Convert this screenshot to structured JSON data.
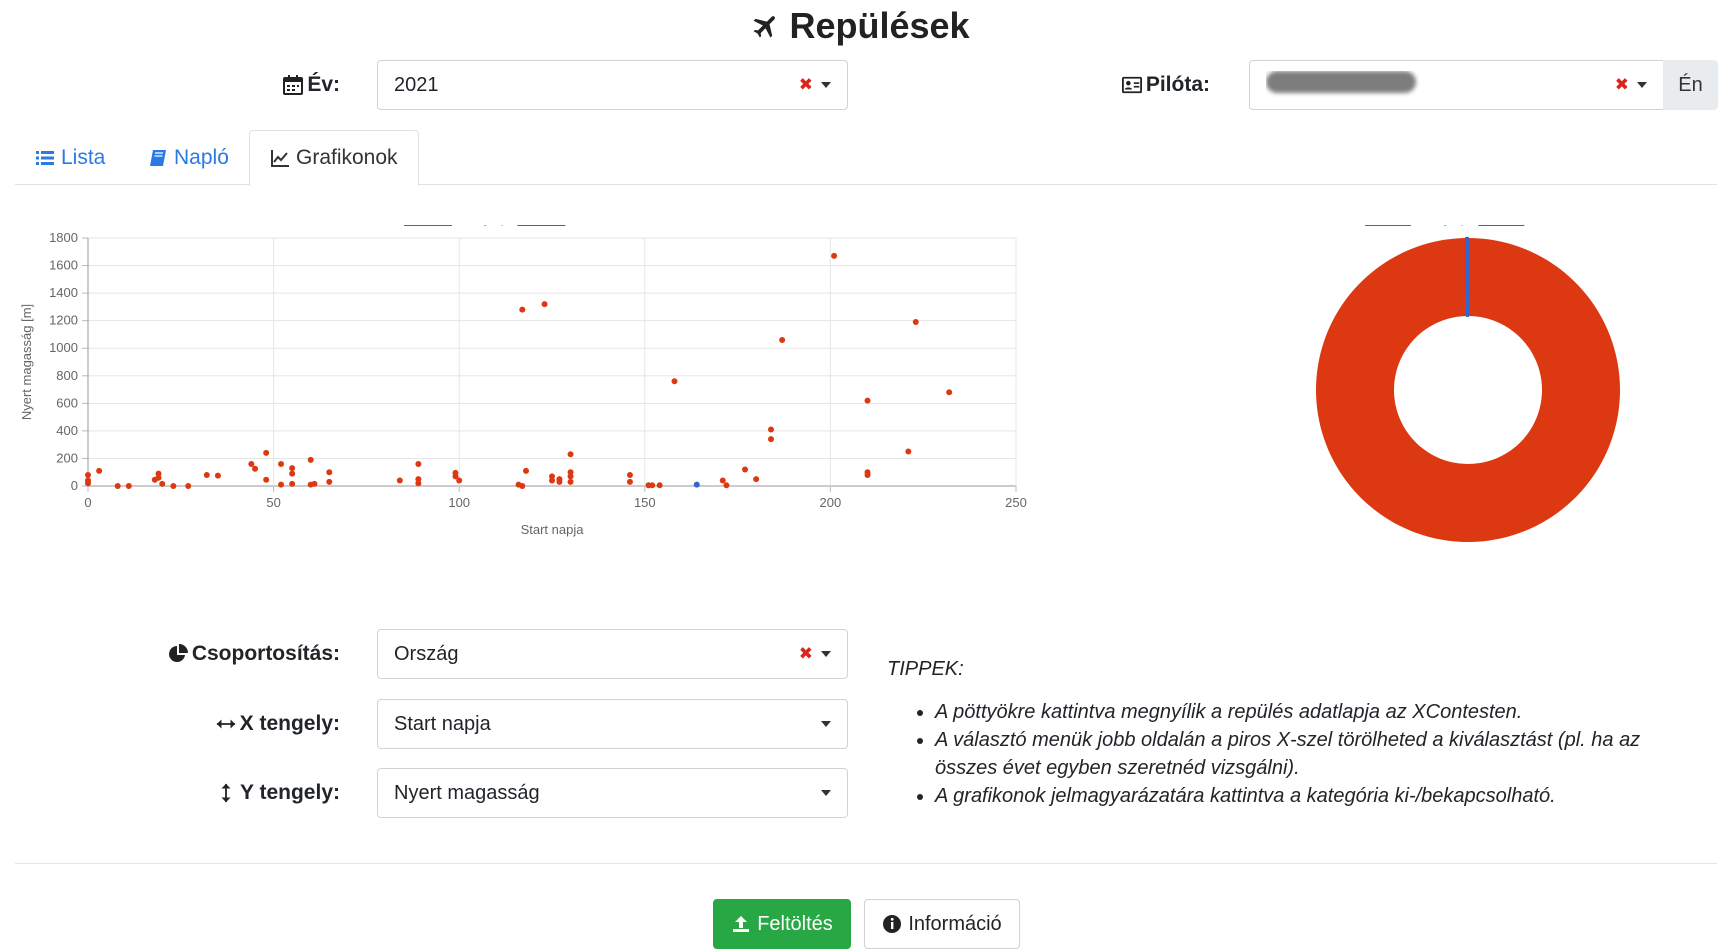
{
  "title": "Repülések",
  "filters": {
    "year_label": "Év:",
    "year_value": "2021",
    "pilot_label": "Pilóta:",
    "pilot_me_button": "Én"
  },
  "tabs": [
    {
      "label": "Lista",
      "icon": "list-icon",
      "active": false
    },
    {
      "label": "Napló",
      "icon": "book-icon",
      "active": false
    },
    {
      "label": "Grafikonok",
      "icon": "line-chart-icon",
      "active": true
    }
  ],
  "controls": {
    "group_label": "Csoportosítás:",
    "group_value": "Ország",
    "x_label": "X tengely:",
    "x_value": "Start napja",
    "y_label": "Y tengely:",
    "y_value": "Nyert magasság"
  },
  "tips": {
    "title": "TIPPEK:",
    "items": [
      "A pöttyökre kattintva megnyílik a repülés adatlapja az XContesten.",
      "A választó menük jobb oldalán a piros X-szel törölheted a kiválasztást (pl. ha az összes évet egyben szeretnéd vizsgálni).",
      "A grafikonok jelmagyarázatára kattintva a kategória ki-/bekapcsolható."
    ]
  },
  "buttons": {
    "upload": "Feltöltés",
    "info": "Információ"
  },
  "colors": {
    "hungary": "#dc3912",
    "slovenia": "#3366cc",
    "link": "#2a7ae2",
    "success": "#28a745"
  },
  "chart_data": [
    {
      "type": "scatter",
      "xlabel": "Start napja",
      "ylabel": "Nyert magasság [m]",
      "xlim": [
        0,
        250
      ],
      "ylim": [
        0,
        1800
      ],
      "xticks": [
        0,
        50,
        100,
        150,
        200,
        250
      ],
      "yticks": [
        0,
        200,
        400,
        600,
        800,
        1000,
        1200,
        1400,
        1600,
        1800
      ],
      "grid": true,
      "legend_position": "top",
      "series": [
        {
          "name": "Hungary",
          "color": "#dc3912",
          "points": [
            [
              0,
              80
            ],
            [
              0,
              40
            ],
            [
              0,
              20
            ],
            [
              3,
              110
            ],
            [
              8,
              0
            ],
            [
              11,
              0
            ],
            [
              18,
              45
            ],
            [
              19,
              90
            ],
            [
              19,
              60
            ],
            [
              20,
              15
            ],
            [
              23,
              0
            ],
            [
              27,
              0
            ],
            [
              32,
              80
            ],
            [
              35,
              75
            ],
            [
              44,
              160
            ],
            [
              45,
              125
            ],
            [
              48,
              240
            ],
            [
              48,
              45
            ],
            [
              52,
              160
            ],
            [
              52,
              10
            ],
            [
              55,
              130
            ],
            [
              55,
              90
            ],
            [
              55,
              15
            ],
            [
              60,
              190
            ],
            [
              60,
              10
            ],
            [
              61,
              15
            ],
            [
              65,
              100
            ],
            [
              65,
              30
            ],
            [
              84,
              40
            ],
            [
              89,
              160
            ],
            [
              89,
              50
            ],
            [
              89,
              20
            ],
            [
              99,
              95
            ],
            [
              99,
              70
            ],
            [
              100,
              40
            ],
            [
              116,
              10
            ],
            [
              117,
              0
            ],
            [
              117,
              1280
            ],
            [
              118,
              110
            ],
            [
              123,
              1320
            ],
            [
              125,
              70
            ],
            [
              125,
              40
            ],
            [
              127,
              50
            ],
            [
              127,
              30
            ],
            [
              130,
              230
            ],
            [
              130,
              100
            ],
            [
              130,
              70
            ],
            [
              130,
              30
            ],
            [
              146,
              80
            ],
            [
              146,
              30
            ],
            [
              151,
              5
            ],
            [
              152,
              5
            ],
            [
              154,
              5
            ],
            [
              158,
              760
            ],
            [
              171,
              40
            ],
            [
              172,
              5
            ],
            [
              177,
              120
            ],
            [
              180,
              50
            ],
            [
              184,
              410
            ],
            [
              184,
              340
            ],
            [
              187,
              1060
            ],
            [
              201,
              1670
            ],
            [
              210,
              620
            ],
            [
              210,
              100
            ],
            [
              210,
              80
            ],
            [
              221,
              250
            ],
            [
              223,
              1190
            ],
            [
              232,
              680
            ]
          ]
        },
        {
          "name": "Slovenia",
          "color": "#3366cc",
          "points": [
            [
              164,
              10
            ]
          ]
        }
      ]
    },
    {
      "type": "pie",
      "variant": "doughnut",
      "legend_position": "top",
      "categories": [
        "Hungary",
        "Slovenia"
      ],
      "values": [
        99.8,
        0.2
      ],
      "colors": [
        "#dc3912",
        "#3366cc"
      ]
    }
  ]
}
